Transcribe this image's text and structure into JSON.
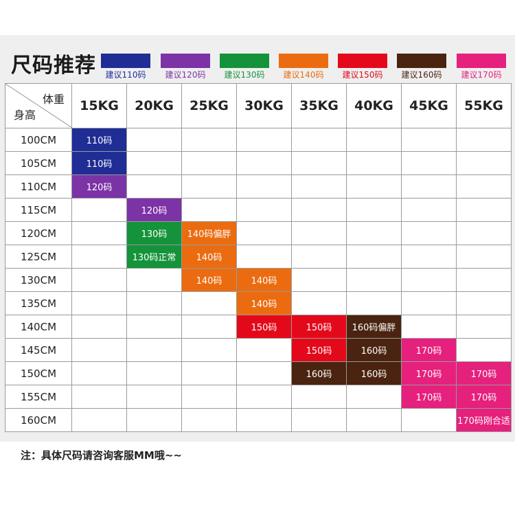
{
  "title": "尺码推荐",
  "legend": [
    {
      "label": "建议110码",
      "color": "#1f2d95"
    },
    {
      "label": "建议120码",
      "color": "#7c33a6"
    },
    {
      "label": "建议130码",
      "color": "#14933a"
    },
    {
      "label": "建议140码",
      "color": "#eb6c10"
    },
    {
      "label": "建议150码",
      "color": "#e4091a"
    },
    {
      "label": "建议160码",
      "color": "#4a2410"
    },
    {
      "label": "建议170码",
      "color": "#e6207d"
    }
  ],
  "table": {
    "corner_top": "体重",
    "corner_bottom": "身高",
    "weights": [
      "15KG",
      "20KG",
      "25KG",
      "30KG",
      "35KG",
      "40KG",
      "45KG",
      "55KG"
    ],
    "rows": [
      {
        "height": "100CM",
        "cells": [
          {
            "col": 0,
            "text": "110码",
            "size": "110"
          }
        ]
      },
      {
        "height": "105CM",
        "cells": [
          {
            "col": 0,
            "text": "110码",
            "size": "110"
          }
        ]
      },
      {
        "height": "110CM",
        "cells": [
          {
            "col": 0,
            "text": "120码",
            "size": "120"
          }
        ]
      },
      {
        "height": "115CM",
        "cells": [
          {
            "col": 1,
            "text": "120码",
            "size": "120"
          }
        ]
      },
      {
        "height": "120CM",
        "cells": [
          {
            "col": 1,
            "text": "130码",
            "size": "130"
          },
          {
            "col": 2,
            "text": "140码偏胖",
            "size": "140"
          }
        ]
      },
      {
        "height": "125CM",
        "cells": [
          {
            "col": 1,
            "text": "130码正常",
            "size": "130"
          },
          {
            "col": 2,
            "text": "140码",
            "size": "140"
          }
        ]
      },
      {
        "height": "130CM",
        "cells": [
          {
            "col": 2,
            "text": "140码",
            "size": "140"
          },
          {
            "col": 3,
            "text": "140码",
            "size": "140"
          }
        ]
      },
      {
        "height": "135CM",
        "cells": [
          {
            "col": 3,
            "text": "140码",
            "size": "140"
          }
        ]
      },
      {
        "height": "140CM",
        "cells": [
          {
            "col": 3,
            "text": "150码",
            "size": "150"
          },
          {
            "col": 4,
            "text": "150码",
            "size": "150"
          },
          {
            "col": 5,
            "text": "160码偏胖",
            "size": "160"
          }
        ]
      },
      {
        "height": "145CM",
        "cells": [
          {
            "col": 4,
            "text": "150码",
            "size": "150"
          },
          {
            "col": 5,
            "text": "160码",
            "size": "160"
          },
          {
            "col": 6,
            "text": "170码",
            "size": "170"
          }
        ]
      },
      {
        "height": "150CM",
        "cells": [
          {
            "col": 4,
            "text": "160码",
            "size": "160"
          },
          {
            "col": 5,
            "text": "160码",
            "size": "160"
          },
          {
            "col": 6,
            "text": "170码",
            "size": "170"
          },
          {
            "col": 7,
            "text": "170码",
            "size": "170"
          }
        ]
      },
      {
        "height": "155CM",
        "cells": [
          {
            "col": 6,
            "text": "170码",
            "size": "170"
          },
          {
            "col": 7,
            "text": "170码",
            "size": "170"
          }
        ]
      },
      {
        "height": "160CM",
        "cells": [
          {
            "col": 7,
            "text": "170码刚合适",
            "size": "170"
          }
        ]
      }
    ]
  },
  "size_colors": {
    "110": "#1f2d95",
    "120": "#7c33a6",
    "130": "#14933a",
    "140": "#eb6c10",
    "150": "#e4091a",
    "160": "#4a2410",
    "170": "#e6207d"
  },
  "note": "注：具体尺码请咨询客服MM哦~~"
}
